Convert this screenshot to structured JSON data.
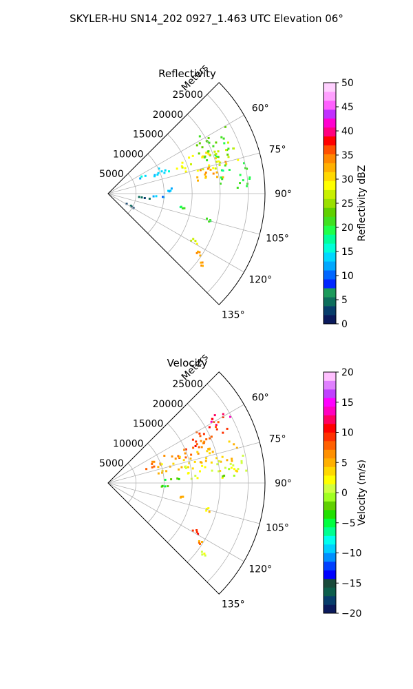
{
  "figure_title": "SKYLER-HU  SN14_202  0927_1.463 UTC Elevation 06°",
  "chart_data": [
    {
      "type": "heatmap",
      "projection": "polar-sector",
      "title": "Reflectivity",
      "range_label": "Meters",
      "range_ticks": [
        "5000",
        "10000",
        "15000",
        "20000",
        "25000"
      ],
      "range_tick_values": [
        5000,
        10000,
        15000,
        20000,
        25000
      ],
      "rmax": 28000,
      "theta_range_deg": [
        45,
        135
      ],
      "theta_tick_values": [
        60,
        75,
        90,
        105,
        120,
        135
      ],
      "theta_ticks": [
        "60°",
        "75°",
        "90°",
        "105°",
        "120°",
        "135°"
      ],
      "colorbar": {
        "label": "Reflectivity dBZ",
        "range": [
          0,
          50
        ],
        "tick_values": [
          0,
          5,
          10,
          15,
          20,
          25,
          30,
          35,
          40,
          45,
          50
        ],
        "ticks": [
          "0",
          "5",
          "10",
          "15",
          "20",
          "25",
          "30",
          "35",
          "40",
          "45",
          "50"
        ],
        "colors": [
          "#0b1a5c",
          "#083d6b",
          "#0d6e5c",
          "#1c9a5a",
          "#0026ff",
          "#0066ff",
          "#00a8ff",
          "#00d8ff",
          "#00ffd8",
          "#00ff9a",
          "#20ff4a",
          "#40e020",
          "#60d000",
          "#9ae000",
          "#c8f000",
          "#ffff00",
          "#ffd800",
          "#ffb000",
          "#ff8800",
          "#ff5000",
          "#ff0000",
          "#ff0080",
          "#ff00d0",
          "#c030ff",
          "#ff60ff",
          "#ffa0ff",
          "#ffd0ff"
        ]
      },
      "echo_regions": [
        {
          "theta": [
            58,
            72
          ],
          "r": [
            17000,
            25000
          ],
          "value": 22
        },
        {
          "theta": [
            66,
            78
          ],
          "r": [
            13000,
            24000
          ],
          "value": 28
        },
        {
          "theta": [
            72,
            82
          ],
          "r": [
            16000,
            22000
          ],
          "value": 33
        },
        {
          "theta": [
            76,
            88
          ],
          "r": [
            20000,
            26000
          ],
          "value": 20
        },
        {
          "theta": [
            63,
            70
          ],
          "r": [
            6000,
            13000
          ],
          "value": 14
        },
        {
          "theta": [
            85,
            88
          ],
          "r": [
            9000,
            12000
          ],
          "value": 12
        },
        {
          "theta": [
            93,
            94
          ],
          "r": [
            8000,
            12000
          ],
          "value": 12
        },
        {
          "theta": [
            96,
            97
          ],
          "r": [
            5500,
            8000
          ],
          "value": 3
        },
        {
          "theta": [
            100,
            102
          ],
          "r": [
            13000,
            14000
          ],
          "value": 20
        },
        {
          "theta": [
            104,
            106
          ],
          "r": [
            18000,
            19000
          ],
          "value": 22
        },
        {
          "theta": [
            118,
            120
          ],
          "r": [
            17000,
            18500
          ],
          "value": 28
        },
        {
          "theta": [
            122,
            124
          ],
          "r": [
            19000,
            20000
          ],
          "value": 34
        },
        {
          "theta": [
            126,
            128
          ],
          "r": [
            20500,
            22000
          ],
          "value": 33
        },
        {
          "theta": [
            118,
            120
          ],
          "r": [
            3500,
            5500
          ],
          "value": 3
        }
      ]
    },
    {
      "type": "heatmap",
      "projection": "polar-sector",
      "title": "Velocity",
      "range_label": "Meters",
      "range_ticks": [
        "5000",
        "10000",
        "15000",
        "20000",
        "25000"
      ],
      "range_tick_values": [
        5000,
        10000,
        15000,
        20000,
        25000
      ],
      "rmax": 28000,
      "theta_range_deg": [
        45,
        135
      ],
      "theta_tick_values": [
        60,
        75,
        90,
        105,
        120,
        135
      ],
      "theta_ticks": [
        "60°",
        "75°",
        "90°",
        "105°",
        "120°",
        "135°"
      ],
      "colorbar": {
        "label": "Velocity (m/s)",
        "range": [
          -20,
          20
        ],
        "tick_values": [
          -20,
          -15,
          -10,
          -5,
          0,
          5,
          10,
          15,
          20
        ],
        "ticks": [
          "−20",
          "−15",
          "−10",
          "−5",
          "0",
          "5",
          "10",
          "15",
          "20"
        ],
        "colors": [
          "#0b1a5c",
          "#083d6b",
          "#0d5e4c",
          "#1a4a3a",
          "#0000ff",
          "#0040ff",
          "#0090ff",
          "#00d0ff",
          "#00ffee",
          "#00ff90",
          "#00ff40",
          "#20e000",
          "#60d000",
          "#a0ff20",
          "#d0ff40",
          "#ffff00",
          "#ffd800",
          "#ffb000",
          "#ff9000",
          "#ff6000",
          "#ff3000",
          "#ff0000",
          "#ff0060",
          "#ff00c0",
          "#ff00ff",
          "#c040ff",
          "#e080ff",
          "#ffc0ff"
        ]
      },
      "echo_regions": [
        {
          "theta": [
            57,
            62
          ],
          "r": [
            19000,
            25000
          ],
          "value": 12
        },
        {
          "theta": [
            60,
            68
          ],
          "r": [
            15000,
            24000
          ],
          "value": 9
        },
        {
          "theta": [
            64,
            72
          ],
          "r": [
            7000,
            20000
          ],
          "value": 7
        },
        {
          "theta": [
            70,
            80
          ],
          "r": [
            9000,
            24000
          ],
          "value": 4
        },
        {
          "theta": [
            78,
            88
          ],
          "r": [
            14000,
            26000
          ],
          "value": 2
        },
        {
          "theta": [
            83,
            88
          ],
          "r": [
            20000,
            23000
          ],
          "value": -1
        },
        {
          "theta": [
            86,
            89
          ],
          "r": [
            10000,
            13000
          ],
          "value": -3
        },
        {
          "theta": [
            93,
            94
          ],
          "r": [
            8000,
            12000
          ],
          "value": -4
        },
        {
          "theta": [
            100,
            102
          ],
          "r": [
            13000,
            14000
          ],
          "value": 5
        },
        {
          "theta": [
            104,
            106
          ],
          "r": [
            18000,
            19000
          ],
          "value": 3
        },
        {
          "theta": [
            118,
            120
          ],
          "r": [
            17000,
            18500
          ],
          "value": 9
        },
        {
          "theta": [
            122,
            124
          ],
          "r": [
            19000,
            20000
          ],
          "value": 6
        },
        {
          "theta": [
            126,
            128
          ],
          "r": [
            20500,
            22000
          ],
          "value": 2
        }
      ]
    }
  ]
}
